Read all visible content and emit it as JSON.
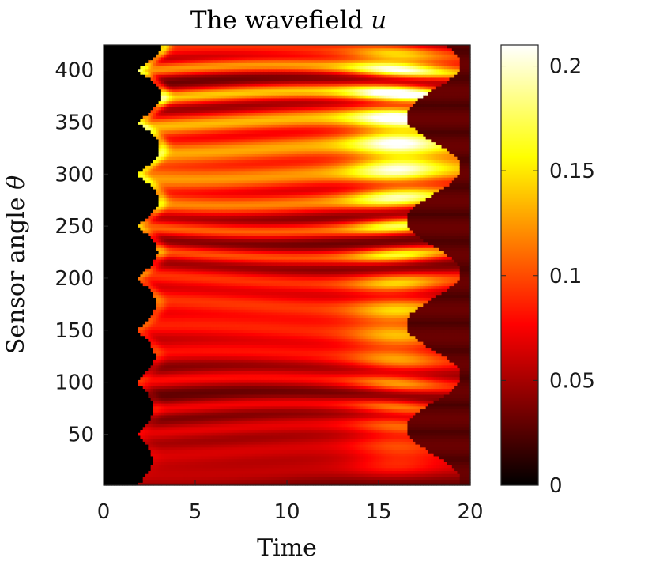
{
  "chart_data": {
    "type": "heatmap",
    "title": "The wavefield",
    "title_symbol": "u",
    "xlabel": "Time",
    "ylabel": "Sensor angle",
    "ylabel_symbol": "θ",
    "x_ticks": [
      "0",
      "5",
      "10",
      "15",
      "20"
    ],
    "y_ticks": [
      "50",
      "100",
      "150",
      "200",
      "250",
      "300",
      "350",
      "400"
    ],
    "colorbar_ticks": [
      "0",
      "0.05",
      "0.1",
      "0.15",
      "0.2"
    ],
    "xlim": [
      0,
      20
    ],
    "ylim": [
      1,
      424
    ],
    "clim": [
      0,
      0.21
    ],
    "colormap": "hot",
    "grid": false,
    "bands": {
      "centers": [
        15,
        35,
        55,
        75,
        100,
        125,
        150,
        175,
        200,
        225,
        250,
        275,
        300,
        325,
        350,
        375,
        400,
        418
      ],
      "peak_values_at_t16": [
        0.06,
        0.07,
        0.08,
        0.09,
        0.1,
        0.1,
        0.11,
        0.12,
        0.12,
        0.14,
        0.15,
        0.17,
        0.18,
        0.19,
        0.2,
        0.21,
        0.18,
        0.12
      ],
      "arrival_time_min": 1.8,
      "arrival_time_max": 3.2,
      "end_time_min": 16.5,
      "end_time_max": 19.5
    }
  }
}
